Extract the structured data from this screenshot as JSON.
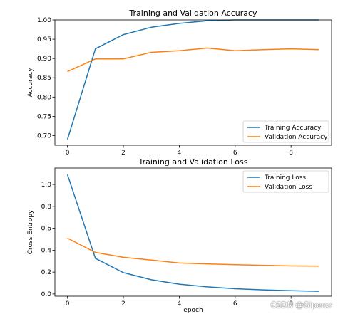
{
  "chart_data": [
    {
      "type": "line",
      "title": "Training and Validation Accuracy",
      "xlabel": "",
      "ylabel": "Accuracy",
      "xlim": [
        -0.45,
        9.45
      ],
      "ylim": [
        0.675,
        1.0
      ],
      "xticks": [
        "0",
        "2",
        "4",
        "6",
        "8"
      ],
      "yticks": [
        "0.70",
        "0.75",
        "0.80",
        "0.85",
        "0.90",
        "0.95",
        "1.00"
      ],
      "legend_position": "lower-right",
      "series": [
        {
          "name": "Training Accuracy",
          "color": "#1f77b4",
          "x": [
            0,
            1,
            2,
            3,
            4,
            5,
            6,
            7,
            8,
            9
          ],
          "y": [
            0.69,
            0.925,
            0.962,
            0.981,
            0.991,
            0.998,
            1.0,
            1.0,
            1.0,
            1.0
          ]
        },
        {
          "name": "Validation Accuracy",
          "color": "#ff7f0e",
          "x": [
            0,
            1,
            2,
            3,
            4,
            5,
            6,
            7,
            8,
            9
          ],
          "y": [
            0.866,
            0.899,
            0.899,
            0.916,
            0.92,
            0.927,
            0.92,
            0.923,
            0.925,
            0.923
          ]
        }
      ]
    },
    {
      "type": "line",
      "title": "Training and Validation Loss",
      "xlabel": "epoch",
      "ylabel": "Cross Entropy",
      "xlim": [
        -0.45,
        9.45
      ],
      "ylim": [
        -0.02,
        1.15
      ],
      "xticks": [
        "0",
        "2",
        "4",
        "6",
        "8"
      ],
      "yticks": [
        "0.0",
        "0.2",
        "0.4",
        "0.6",
        "0.8",
        "1.0"
      ],
      "legend_position": "upper-right",
      "series": [
        {
          "name": "Training Loss",
          "color": "#1f77b4",
          "x": [
            0,
            1,
            2,
            3,
            4,
            5,
            6,
            7,
            8,
            9
          ],
          "y": [
            1.09,
            0.325,
            0.195,
            0.13,
            0.09,
            0.065,
            0.048,
            0.038,
            0.03,
            0.025
          ]
        },
        {
          "name": "Validation Loss",
          "color": "#ff7f0e",
          "x": [
            0,
            1,
            2,
            3,
            4,
            5,
            6,
            7,
            8,
            9
          ],
          "y": [
            0.51,
            0.38,
            0.335,
            0.31,
            0.283,
            0.275,
            0.268,
            0.262,
            0.256,
            0.254
          ]
        }
      ]
    }
  ],
  "watermark": "CSDN @Giperxr"
}
